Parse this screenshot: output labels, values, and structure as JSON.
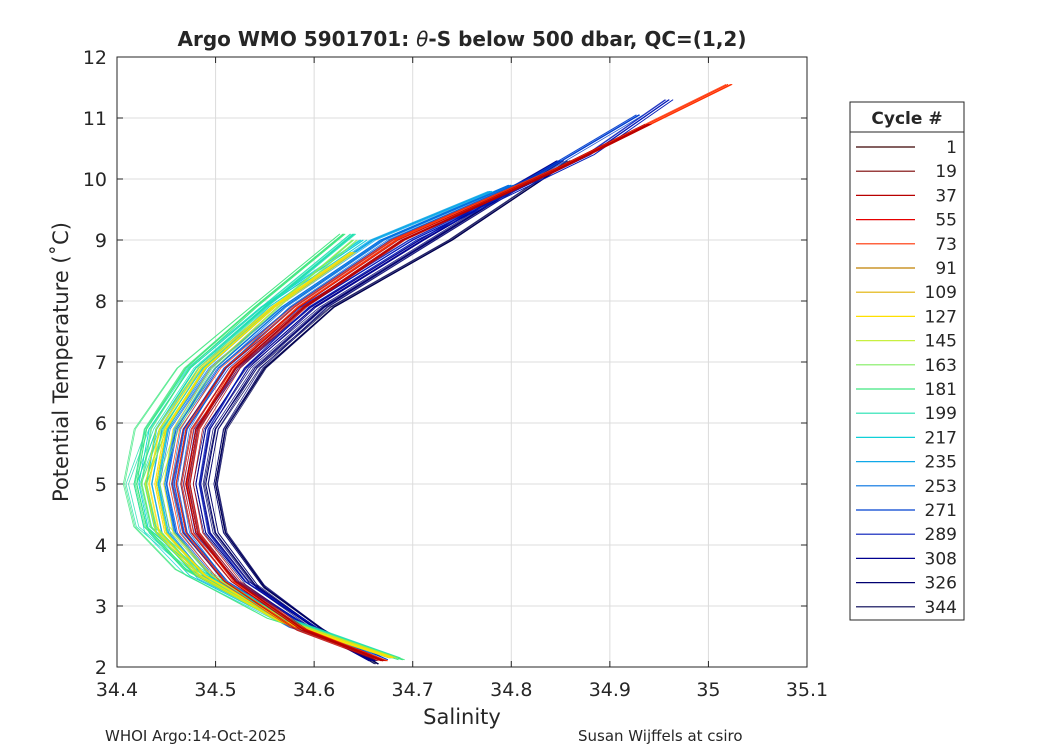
{
  "chart_data": {
    "type": "line",
    "title_prefix": "Argo WMO 5901701: ",
    "title_theta": "θ",
    "title_suffix": "-S below 500 dbar,  QC=(1,2)",
    "xlabel": "Salinity",
    "ylabel": "Potential Temperature (˚C)",
    "xlim": [
      34.4,
      35.1
    ],
    "ylim": [
      2,
      12
    ],
    "xticks": [
      "34.4",
      "34.5",
      "34.6",
      "34.7",
      "34.8",
      "34.9",
      "35",
      "35.1"
    ],
    "yticks": [
      "2",
      "3",
      "4",
      "5",
      "6",
      "7",
      "8",
      "9",
      "10",
      "11",
      "12"
    ],
    "grid": true,
    "legend": {
      "title": "Cycle #",
      "placement": "right-outside",
      "entries": [
        {
          "label": "1",
          "color": "#3a0000"
        },
        {
          "label": "19",
          "color": "#7a0000"
        },
        {
          "label": "37",
          "color": "#b80000"
        },
        {
          "label": "55",
          "color": "#e60000"
        },
        {
          "label": "73",
          "color": "#ff3000"
        },
        {
          "label": "91",
          "color": "#c08000"
        },
        {
          "label": "109",
          "color": "#e0b000"
        },
        {
          "label": "127",
          "color": "#ffe000"
        },
        {
          "label": "145",
          "color": "#c8f040"
        },
        {
          "label": "163",
          "color": "#80ee60"
        },
        {
          "label": "181",
          "color": "#40e880"
        },
        {
          "label": "199",
          "color": "#20e0b0"
        },
        {
          "label": "217",
          "color": "#10d0d8"
        },
        {
          "label": "235",
          "color": "#10a8e8"
        },
        {
          "label": "253",
          "color": "#0070e0"
        },
        {
          "label": "271",
          "color": "#0040d0"
        },
        {
          "label": "289",
          "color": "#0018b8"
        },
        {
          "label": "308",
          "color": "#000090"
        },
        {
          "label": "326",
          "color": "#000070"
        },
        {
          "label": "344",
          "color": "#000050"
        }
      ]
    },
    "profiles": [
      {
        "cycle": "344",
        "color": "#000050",
        "s": [
          34.665,
          34.61,
          34.55,
          34.51,
          34.5,
          34.51,
          34.55,
          34.62,
          34.74,
          34.86
        ],
        "t": [
          2.05,
          2.6,
          3.3,
          4.2,
          5.0,
          5.9,
          6.9,
          7.9,
          9.0,
          10.3
        ]
      },
      {
        "cycle": "326",
        "color": "#000070",
        "s": [
          34.66,
          34.6,
          34.54,
          34.5,
          34.49,
          34.5,
          34.54,
          34.61,
          34.72,
          34.85
        ],
        "t": [
          2.1,
          2.65,
          3.35,
          4.2,
          5.0,
          5.9,
          6.9,
          7.9,
          9.0,
          10.3
        ]
      },
      {
        "cycle": "308",
        "color": "#000090",
        "s": [
          34.66,
          34.6,
          34.53,
          34.49,
          34.48,
          34.49,
          34.53,
          34.6,
          34.71,
          34.85
        ],
        "t": [
          2.1,
          2.65,
          3.4,
          4.2,
          5.0,
          5.9,
          6.9,
          7.9,
          9.0,
          10.3
        ]
      },
      {
        "cycle": "289",
        "color": "#0018b8",
        "s": [
          34.67,
          34.6,
          34.52,
          34.48,
          34.47,
          34.48,
          34.52,
          34.59,
          34.7,
          34.88,
          34.96
        ],
        "t": [
          2.12,
          2.6,
          3.4,
          4.2,
          5.0,
          5.9,
          6.9,
          7.9,
          9.0,
          10.4,
          11.3
        ]
      },
      {
        "cycle": "271",
        "color": "#0040d0",
        "s": [
          34.67,
          34.59,
          34.51,
          34.47,
          34.46,
          34.47,
          34.51,
          34.58,
          34.68,
          34.82,
          34.93
        ],
        "t": [
          2.12,
          2.6,
          3.4,
          4.2,
          5.0,
          5.9,
          6.9,
          7.9,
          9.0,
          10.0,
          11.05
        ]
      },
      {
        "cycle": "253",
        "color": "#0070e0",
        "s": [
          34.68,
          34.58,
          34.5,
          34.46,
          34.45,
          34.46,
          34.5,
          34.57,
          34.67,
          34.8
        ],
        "t": [
          2.15,
          2.65,
          3.4,
          4.2,
          5.0,
          5.9,
          6.9,
          7.9,
          9.0,
          9.9
        ]
      },
      {
        "cycle": "235",
        "color": "#10a8e8",
        "s": [
          34.68,
          34.58,
          34.49,
          34.45,
          34.44,
          34.45,
          34.49,
          34.56,
          34.66,
          34.78
        ],
        "t": [
          2.15,
          2.7,
          3.45,
          4.2,
          5.0,
          5.9,
          6.9,
          7.9,
          9.0,
          9.8
        ]
      },
      {
        "cycle": "217",
        "color": "#10d0d8",
        "s": [
          34.68,
          34.57,
          34.48,
          34.44,
          34.43,
          34.44,
          34.48,
          34.55,
          34.65
        ],
        "t": [
          2.15,
          2.75,
          3.5,
          4.2,
          5.0,
          5.9,
          6.9,
          7.9,
          9.0
        ]
      },
      {
        "cycle": "199",
        "color": "#20e0b0",
        "s": [
          34.685,
          34.57,
          34.48,
          34.43,
          34.42,
          34.44,
          34.48,
          34.55,
          34.64
        ],
        "t": [
          2.15,
          2.8,
          3.6,
          4.3,
          5.0,
          5.9,
          6.9,
          7.9,
          9.1
        ]
      },
      {
        "cycle": "181",
        "color": "#40e880",
        "s": [
          34.69,
          34.56,
          34.47,
          34.43,
          34.42,
          34.43,
          34.47,
          34.54,
          34.63
        ],
        "t": [
          2.12,
          2.8,
          3.6,
          4.3,
          5.0,
          5.9,
          6.9,
          7.9,
          9.1
        ]
      },
      {
        "cycle": "163",
        "color": "#80ee60",
        "s": [
          34.68,
          34.56,
          34.48,
          34.44,
          34.43,
          34.45,
          34.49,
          34.56,
          34.64
        ],
        "t": [
          2.15,
          2.8,
          3.6,
          4.3,
          5.0,
          5.9,
          6.9,
          7.9,
          9.0
        ]
      },
      {
        "cycle": "127",
        "color": "#ffe000",
        "s": [
          34.68,
          34.57,
          34.49,
          34.45,
          34.44,
          34.45,
          34.49,
          34.56,
          34.64
        ],
        "t": [
          2.15,
          2.75,
          3.5,
          4.2,
          5.0,
          5.9,
          6.9,
          7.9,
          8.8
        ]
      },
      {
        "cycle": "73",
        "color": "#ff3000",
        "s": [
          34.67,
          34.58,
          34.51,
          34.47,
          34.46,
          34.47,
          34.51,
          34.58,
          34.68,
          34.85,
          35.02
        ],
        "t": [
          2.1,
          2.65,
          3.4,
          4.2,
          5.0,
          5.9,
          6.9,
          7.9,
          9.0,
          10.2,
          11.55
        ]
      },
      {
        "cycle": "37",
        "color": "#b80000",
        "s": [
          34.67,
          34.59,
          34.52,
          34.48,
          34.47,
          34.48,
          34.52,
          34.59,
          34.69,
          34.84,
          34.94
        ],
        "t": [
          2.1,
          2.6,
          3.4,
          4.2,
          5.0,
          5.9,
          6.9,
          7.9,
          9.0,
          10.1,
          10.9
        ]
      }
    ]
  },
  "footer": {
    "left": "WHOI Argo:14-Oct-2025",
    "right": "Susan Wijffels at csiro"
  }
}
